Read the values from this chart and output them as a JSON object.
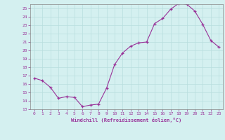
{
  "title": "",
  "xlabel": "Windchill (Refroidissement éolien,°C)",
  "ylabel": "",
  "x_values": [
    0,
    1,
    2,
    3,
    4,
    5,
    6,
    7,
    8,
    9,
    10,
    11,
    12,
    13,
    14,
    15,
    16,
    17,
    18,
    19,
    20,
    21,
    22,
    23
  ],
  "y_values": [
    16.7,
    16.4,
    15.6,
    14.3,
    14.5,
    14.4,
    13.3,
    13.5,
    13.6,
    15.5,
    18.3,
    19.7,
    20.5,
    20.9,
    21.0,
    23.2,
    23.8,
    24.9,
    25.6,
    25.5,
    24.7,
    23.1,
    21.2,
    20.4
  ],
  "ylim": [
    13,
    25.5
  ],
  "xlim": [
    -0.5,
    23.5
  ],
  "yticks": [
    13,
    14,
    15,
    16,
    17,
    18,
    19,
    20,
    21,
    22,
    23,
    24,
    25
  ],
  "xticks": [
    0,
    1,
    2,
    3,
    4,
    5,
    6,
    7,
    8,
    9,
    10,
    11,
    12,
    13,
    14,
    15,
    16,
    17,
    18,
    19,
    20,
    21,
    22,
    23
  ],
  "line_color": "#993399",
  "marker_color": "#993399",
  "bg_color": "#d4f0f0",
  "grid_color": "#b8dede",
  "tick_label_color": "#993399",
  "axis_label_color": "#993399",
  "font_family": "monospace"
}
